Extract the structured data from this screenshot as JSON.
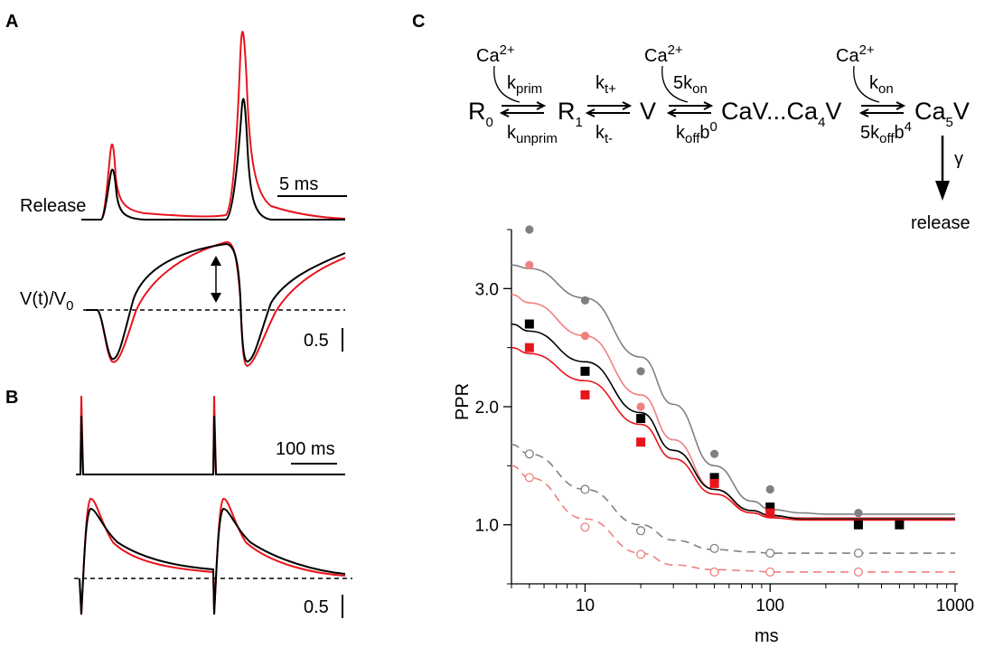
{
  "panels": {
    "A": "A",
    "B": "B",
    "C": "C"
  },
  "panel_a": {
    "release_label": "Release",
    "scalebar_time": "5 ms",
    "v_label_main": "V(t)/V",
    "v_label_sub": "0",
    "scalebar_amp": "0.5"
  },
  "panel_b": {
    "scalebar_time": "100 ms",
    "scalebar_amp": "0.5"
  },
  "scheme": {
    "ca": "Ca",
    "ca_sup": "2+",
    "r0": "R",
    "r0_sub": "0",
    "r1": "R",
    "r1_sub": "1",
    "v": "V",
    "cav": "CaV...Ca",
    "cav_sub": "4",
    "cav_end": "V",
    "ca5v": "Ca",
    "ca5v_sub": "5",
    "ca5v_end": "V",
    "k": "k",
    "kprim_sub": "prim",
    "kunprim_sub": "unprim",
    "kt_plus_sub": "t+",
    "kt_minus_sub": "t-",
    "five_kon_pre": "5k",
    "kon_sub": "on",
    "koff_sub": "off",
    "b": "b",
    "b0_sup": "0",
    "kon_label": "k",
    "five_koff_pre": "5k",
    "b4_sup": "4",
    "gamma": "γ",
    "release": "release"
  },
  "colors": {
    "black": "#000000",
    "red": "#e8141c",
    "gray": "#808080",
    "pink": "#f08080"
  },
  "chart_data": {
    "type": "scatter",
    "title": "",
    "xlabel": "ms",
    "ylabel": "PPR",
    "xscale": "log",
    "xlim": [
      4,
      1000
    ],
    "ylim": [
      0.5,
      3.5
    ],
    "x_ticks": [
      "10",
      "100",
      "1000"
    ],
    "y_ticks": [
      "1.0",
      "2.0",
      "3.0"
    ],
    "series": [
      {
        "name": "gray-filled",
        "marker": "circle-filled",
        "color": "#808080",
        "x": [
          5,
          10,
          20,
          50,
          100,
          300
        ],
        "y": [
          3.5,
          2.9,
          2.3,
          1.6,
          1.3,
          1.1
        ],
        "fit": {
          "x": [
            4,
            5,
            10,
            20,
            30,
            50,
            80,
            100,
            150,
            200,
            1000
          ],
          "y": [
            3.2,
            3.17,
            2.92,
            2.42,
            2.02,
            1.5,
            1.2,
            1.13,
            1.1,
            1.09,
            1.09
          ],
          "dash": false
        }
      },
      {
        "name": "pink-filled",
        "marker": "circle-filled",
        "color": "#f08080",
        "x": [
          5,
          10,
          20
        ],
        "y": [
          3.2,
          2.6,
          2.0
        ],
        "fit": {
          "x": [
            4,
            5,
            10,
            20,
            30,
            50,
            80,
            100,
            150,
            1000
          ],
          "y": [
            2.95,
            2.88,
            2.6,
            2.1,
            1.72,
            1.3,
            1.1,
            1.07,
            1.06,
            1.06
          ],
          "dash": false
        }
      },
      {
        "name": "black-square",
        "marker": "square-filled",
        "color": "#000000",
        "x": [
          5,
          10,
          20,
          50,
          100,
          300,
          500
        ],
        "y": [
          2.7,
          2.3,
          1.9,
          1.4,
          1.15,
          1.0,
          1.0
        ],
        "fit": {
          "x": [
            4,
            5,
            10,
            20,
            30,
            50,
            80,
            100,
            150,
            1000
          ],
          "y": [
            2.7,
            2.64,
            2.38,
            1.95,
            1.63,
            1.3,
            1.12,
            1.08,
            1.05,
            1.05
          ],
          "dash": false
        }
      },
      {
        "name": "red-square",
        "marker": "square-filled",
        "color": "#e8141c",
        "x": [
          5,
          10,
          20,
          50,
          100
        ],
        "y": [
          2.5,
          2.1,
          1.7,
          1.35,
          1.1
        ],
        "fit": {
          "x": [
            4,
            5,
            10,
            20,
            30,
            50,
            80,
            100,
            150,
            1000
          ],
          "y": [
            2.5,
            2.45,
            2.22,
            1.85,
            1.56,
            1.26,
            1.1,
            1.06,
            1.04,
            1.04
          ],
          "dash": false
        }
      },
      {
        "name": "gray-open",
        "marker": "circle-open",
        "color": "#808080",
        "x": [
          5,
          10,
          20,
          50,
          100,
          300
        ],
        "y": [
          1.6,
          1.3,
          0.95,
          0.8,
          0.76,
          0.76
        ],
        "fit": {
          "x": [
            4,
            5,
            10,
            20,
            30,
            50,
            80,
            100,
            1000
          ],
          "y": [
            1.68,
            1.6,
            1.3,
            1.0,
            0.87,
            0.79,
            0.77,
            0.76,
            0.76
          ],
          "dash": true
        }
      },
      {
        "name": "pink-open",
        "marker": "circle-open",
        "color": "#f08080",
        "x": [
          5,
          10,
          20,
          50,
          100,
          300
        ],
        "y": [
          1.4,
          0.98,
          0.75,
          0.6,
          0.6,
          0.6
        ],
        "fit": {
          "x": [
            4,
            5,
            10,
            20,
            30,
            50,
            80,
            100,
            1000
          ],
          "y": [
            1.5,
            1.4,
            1.05,
            0.76,
            0.66,
            0.62,
            0.61,
            0.6,
            0.6
          ],
          "dash": true
        }
      }
    ]
  }
}
